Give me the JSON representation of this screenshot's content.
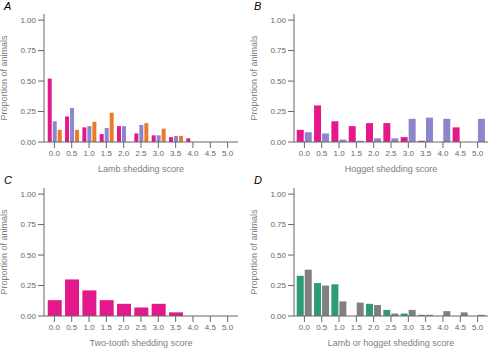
{
  "chart_data": [
    {
      "type": "bar",
      "title": "A",
      "xlabel": "Lamb shedding score",
      "ylabel": "Proportion of animals",
      "x": [
        0.0,
        0.5,
        1.0,
        1.5,
        2.0,
        2.5,
        3.0,
        3.5,
        4.0
      ],
      "series": [
        {
          "color": "#E5188B",
          "values": [
            0.52,
            0.21,
            0.12,
            0.065,
            0.13,
            0.07,
            0.055,
            0.04,
            0.03
          ]
        },
        {
          "color": "#8B87CC",
          "values": [
            0.17,
            0.28,
            0.13,
            0.115,
            0.13,
            0.14,
            0.055,
            0.05,
            0.0
          ]
        },
        {
          "color": "#E87C2A",
          "values": [
            0.1,
            0.1,
            0.165,
            0.24,
            0.0,
            0.155,
            0.11,
            0.05,
            0.0
          ]
        }
      ],
      "xlim": [
        -0.3,
        5.3
      ],
      "xticks": [
        {
          "value": 0.0,
          "label": "0.0"
        },
        0.5,
        {
          "value": 1.0,
          "label": "1.0"
        },
        1.5,
        {
          "value": 2.0,
          "label": "2.0"
        },
        2.5,
        {
          "value": 3.0,
          "label": "3.0"
        },
        3.5,
        {
          "value": 4.0,
          "label": "4.0"
        },
        4.5,
        {
          "value": 5.0,
          "label": "5.0"
        }
      ],
      "ylim": [
        0,
        1.05
      ],
      "yticks": [
        {
          "value": 0.0,
          "label": "0.00"
        },
        0.25,
        {
          "value": 0.5,
          "label": "0.50"
        },
        0.75,
        {
          "value": 1.0,
          "label": "1.00"
        }
      ],
      "grid": false
    },
    {
      "type": "bar",
      "title": "B",
      "xlabel": "Hogget shedding score",
      "ylabel": "Proportion of animals",
      "x": [
        0.0,
        0.5,
        1.0,
        1.5,
        2.0,
        2.5,
        3.0,
        3.5,
        4.0,
        4.5,
        5.0
      ],
      "series": [
        {
          "color": "#E5188B",
          "values": [
            0.1,
            0.3,
            0.17,
            0.13,
            0.155,
            0.155,
            0.04,
            0.01,
            0.0,
            0.12,
            0.0
          ]
        },
        {
          "color": "#8B87CC",
          "values": [
            0.08,
            0.07,
            0.02,
            0.01,
            0.03,
            0.03,
            0.19,
            0.2,
            0.19,
            0.0,
            0.19
          ]
        }
      ],
      "xlim": [
        -0.3,
        5.3
      ],
      "xticks": [
        {
          "value": 0.0,
          "label": "0.0"
        },
        0.5,
        {
          "value": 1.0,
          "label": "1.0"
        },
        1.5,
        {
          "value": 2.0,
          "label": "2.0"
        },
        2.5,
        {
          "value": 3.0,
          "label": "3.0"
        },
        3.5,
        {
          "value": 4.0,
          "label": "4.0"
        },
        4.5,
        {
          "value": 5.0,
          "label": "5.0"
        }
      ],
      "ylim": [
        0,
        1.05
      ],
      "yticks": [
        {
          "value": 0.0,
          "label": "0.00"
        },
        0.25,
        {
          "value": 0.5,
          "label": "0.50"
        },
        0.75,
        {
          "value": 1.0,
          "label": "1.00"
        }
      ],
      "grid": false
    },
    {
      "type": "bar",
      "title": "C",
      "xlabel": "Two-tooth shedding score",
      "ylabel": "Proportion of animals",
      "x": [
        0.0,
        0.5,
        1.0,
        1.5,
        2.0,
        2.5,
        3.0,
        3.5
      ],
      "series": [
        {
          "color": "#E5188B",
          "values": [
            0.13,
            0.3,
            0.21,
            0.13,
            0.1,
            0.07,
            0.1,
            0.03
          ]
        }
      ],
      "xlim": [
        -0.3,
        5.3
      ],
      "xticks": [
        {
          "value": 0.0,
          "label": "0.0"
        },
        0.5,
        {
          "value": 1.0,
          "label": "1.0"
        },
        1.5,
        {
          "value": 2.0,
          "label": "2.0"
        },
        2.5,
        {
          "value": 3.0,
          "label": "3.0"
        },
        3.5,
        {
          "value": 4.0,
          "label": "4.0"
        },
        4.5,
        {
          "value": 5.0,
          "label": "5.0"
        }
      ],
      "ylim": [
        0,
        1.05
      ],
      "yticks": [
        {
          "value": 0.0,
          "label": "0.00"
        },
        0.25,
        {
          "value": 0.5,
          "label": "0.50"
        },
        0.75,
        {
          "value": 1.0,
          "label": "1.00"
        }
      ],
      "grid": false
    },
    {
      "type": "bar",
      "title": "D",
      "xlabel": "Lamb or hogget shedding score",
      "ylabel": "Proportion of animals",
      "x": [
        0.0,
        0.5,
        1.0,
        1.5,
        2.0,
        2.5,
        3.0,
        3.5,
        4.0,
        4.5,
        5.0
      ],
      "series": [
        {
          "color": "#2E9B78",
          "values": [
            0.33,
            0.27,
            0.26,
            0.0,
            0.1,
            0.05,
            0.02,
            0.01,
            0.0,
            0.0,
            0.0
          ]
        },
        {
          "color": "#808080",
          "values": [
            0.38,
            0.25,
            0.12,
            0.11,
            0.09,
            0.02,
            0.05,
            0.01,
            0.04,
            0.03,
            0.01
          ]
        }
      ],
      "xlim": [
        -0.3,
        5.3
      ],
      "xticks": [
        {
          "value": 0.0,
          "label": "0.0"
        },
        0.5,
        {
          "value": 1.0,
          "label": "1.0"
        },
        1.5,
        {
          "value": 2.0,
          "label": "2.0"
        },
        2.5,
        {
          "value": 3.0,
          "label": "3.0"
        },
        3.5,
        {
          "value": 4.0,
          "label": "4.0"
        },
        4.5,
        {
          "value": 5.0,
          "label": "5.0"
        }
      ],
      "ylim": [
        0,
        1.05
      ],
      "yticks": [
        {
          "value": 0.0,
          "label": "0.00"
        },
        0.25,
        {
          "value": 0.5,
          "label": "0.50"
        },
        0.75,
        {
          "value": 1.0,
          "label": "1.00"
        }
      ],
      "grid": false
    }
  ]
}
